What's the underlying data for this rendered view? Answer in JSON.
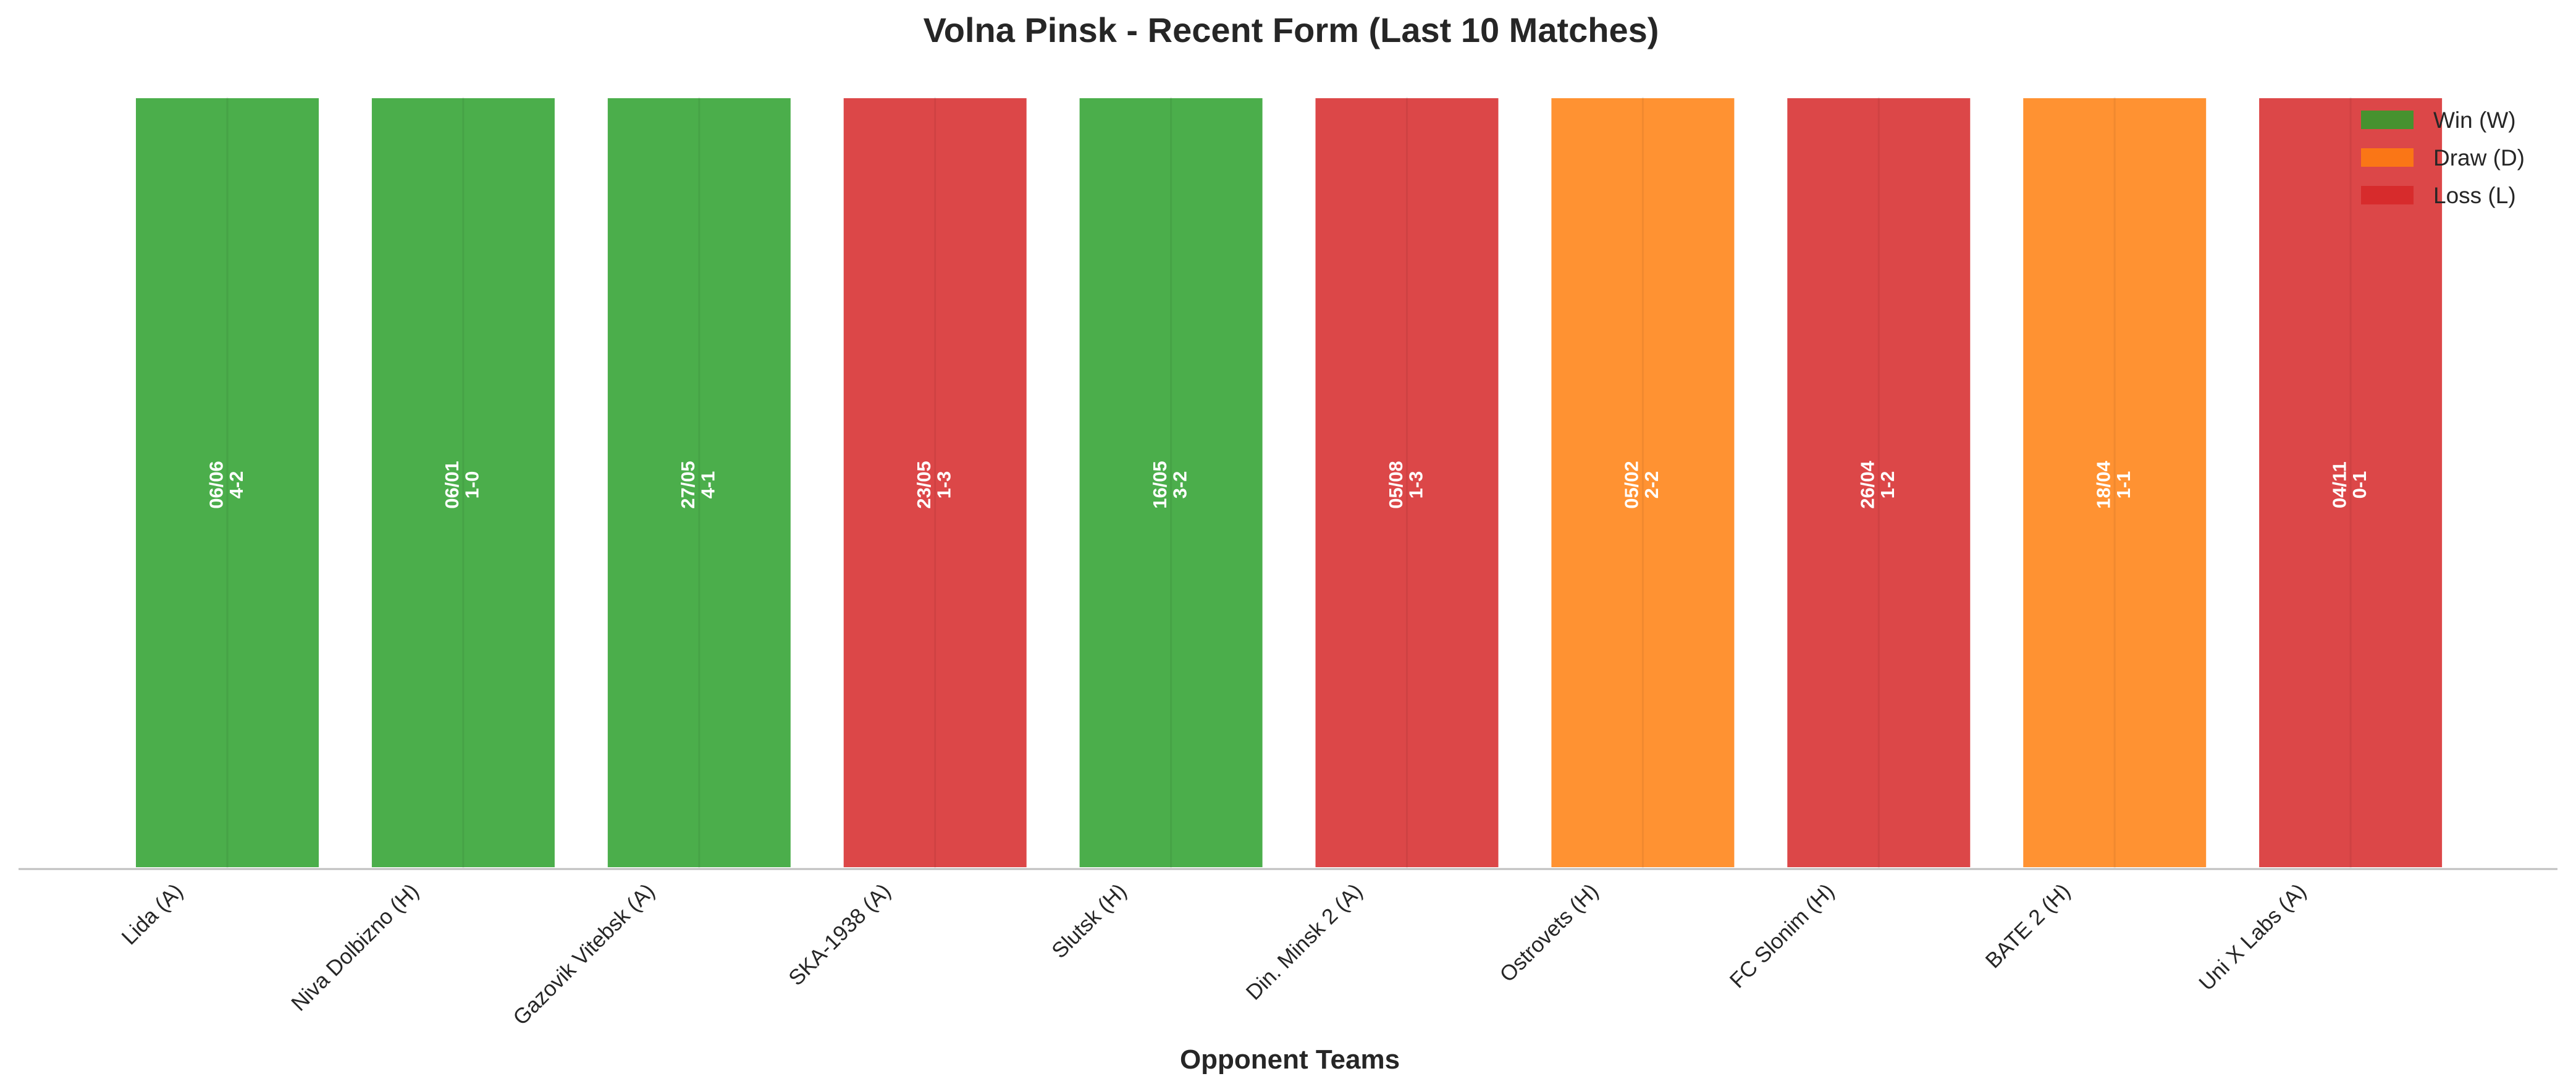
{
  "chart_data": {
    "type": "bar",
    "title": "Volna Pinsk - Recent Form (Last 10 Matches)",
    "xlabel": "Opponent Teams",
    "ylabel": "",
    "categories": [
      "Lida (A)",
      "Niva Dolbizno (H)",
      "Gazovik Vitebsk (A)",
      "SKA-1938 (A)",
      "Slutsk (H)",
      "Din. Minsk 2 (A)",
      "Ostrovets (H)",
      "FC Slonim (H)",
      "BATE 2 (H)",
      "Uni X Labs (A)"
    ],
    "values": [
      1,
      1,
      1,
      1,
      1,
      1,
      1,
      1,
      1,
      1
    ],
    "results": [
      "W",
      "W",
      "W",
      "L",
      "W",
      "L",
      "D",
      "L",
      "D",
      "L"
    ],
    "dates": [
      "06/06",
      "06/01",
      "27/05",
      "23/05",
      "16/05",
      "05/08",
      "05/02",
      "26/04",
      "18/04",
      "04/11"
    ],
    "scores": [
      "4-2",
      "1-0",
      "4-1",
      "1-3",
      "3-2",
      "1-3",
      "2-2",
      "1-2",
      "1-1",
      "0-1"
    ],
    "ylim": [
      0,
      1
    ],
    "grid": false,
    "legend": {
      "placement": "top-right",
      "entries": [
        {
          "key": "W",
          "label": "Win (W)"
        },
        {
          "key": "D",
          "label": "Draw (D)"
        },
        {
          "key": "L",
          "label": "Loss (L)"
        }
      ]
    },
    "colors": {
      "W": "#2ca02c",
      "D": "#ff7f0e",
      "L": "#d62728"
    }
  }
}
